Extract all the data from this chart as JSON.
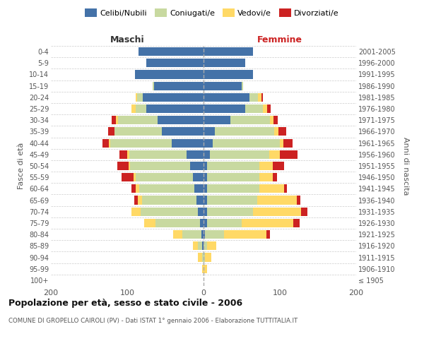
{
  "age_groups": [
    "100+",
    "95-99",
    "90-94",
    "85-89",
    "80-84",
    "75-79",
    "70-74",
    "65-69",
    "60-64",
    "55-59",
    "50-54",
    "45-49",
    "40-44",
    "35-39",
    "30-34",
    "25-29",
    "20-24",
    "15-19",
    "10-14",
    "5-9",
    "0-4"
  ],
  "birth_years": [
    "≤ 1905",
    "1906-1910",
    "1911-1915",
    "1916-1920",
    "1921-1925",
    "1926-1930",
    "1931-1935",
    "1936-1940",
    "1941-1945",
    "1946-1950",
    "1951-1955",
    "1956-1960",
    "1961-1965",
    "1966-1970",
    "1971-1975",
    "1976-1980",
    "1981-1985",
    "1986-1990",
    "1991-1995",
    "1996-2000",
    "2001-2005"
  ],
  "maschi_celibi": [
    0,
    0,
    0,
    2,
    3,
    5,
    7,
    9,
    12,
    14,
    18,
    22,
    42,
    55,
    60,
    75,
    80,
    65,
    90,
    75,
    85
  ],
  "maschi_coniugati": [
    0,
    0,
    2,
    5,
    25,
    58,
    75,
    72,
    72,
    75,
    78,
    75,
    80,
    62,
    52,
    14,
    7,
    2,
    0,
    0,
    0
  ],
  "maschi_vedovi": [
    0,
    2,
    5,
    7,
    12,
    15,
    12,
    5,
    5,
    3,
    2,
    3,
    2,
    0,
    3,
    5,
    2,
    0,
    0,
    0,
    0
  ],
  "maschi_divorziati": [
    0,
    0,
    0,
    0,
    0,
    0,
    0,
    5,
    5,
    15,
    15,
    10,
    8,
    8,
    5,
    0,
    0,
    0,
    0,
    0,
    0
  ],
  "femmine_nubili": [
    0,
    0,
    0,
    0,
    2,
    5,
    5,
    5,
    5,
    5,
    5,
    8,
    12,
    15,
    35,
    55,
    60,
    50,
    65,
    55,
    65
  ],
  "femmine_coniugate": [
    0,
    0,
    2,
    5,
    25,
    45,
    60,
    65,
    68,
    68,
    68,
    78,
    88,
    78,
    52,
    23,
    11,
    2,
    0,
    0,
    0
  ],
  "femmine_vedove": [
    0,
    5,
    8,
    12,
    55,
    68,
    63,
    52,
    33,
    18,
    18,
    14,
    5,
    5,
    5,
    5,
    5,
    0,
    0,
    0,
    0
  ],
  "femmine_divorziate": [
    0,
    0,
    0,
    0,
    5,
    8,
    8,
    5,
    3,
    5,
    15,
    23,
    12,
    10,
    5,
    5,
    2,
    0,
    0,
    0,
    0
  ],
  "color_celibi": "#4472a8",
  "color_coniugati": "#c8d9a0",
  "color_vedovi": "#ffd966",
  "color_divorziati": "#cc2222",
  "xlim": 200,
  "title": "Popolazione per età, sesso e stato civile - 2006",
  "subtitle": "COMUNE DI GROPELLO CAIROLI (PV) - Dati ISTAT 1° gennaio 2006 - Elaborazione TUTTITALIA.IT",
  "ylabel_left": "Fasce di età",
  "ylabel_right": "Anni di nascita",
  "header_maschi": "Maschi",
  "header_femmine": "Femmine",
  "legend_labels": [
    "Celibi/Nubili",
    "Coniugati/e",
    "Vedovi/e",
    "Divorziati/e"
  ],
  "bg_color": "#ffffff"
}
